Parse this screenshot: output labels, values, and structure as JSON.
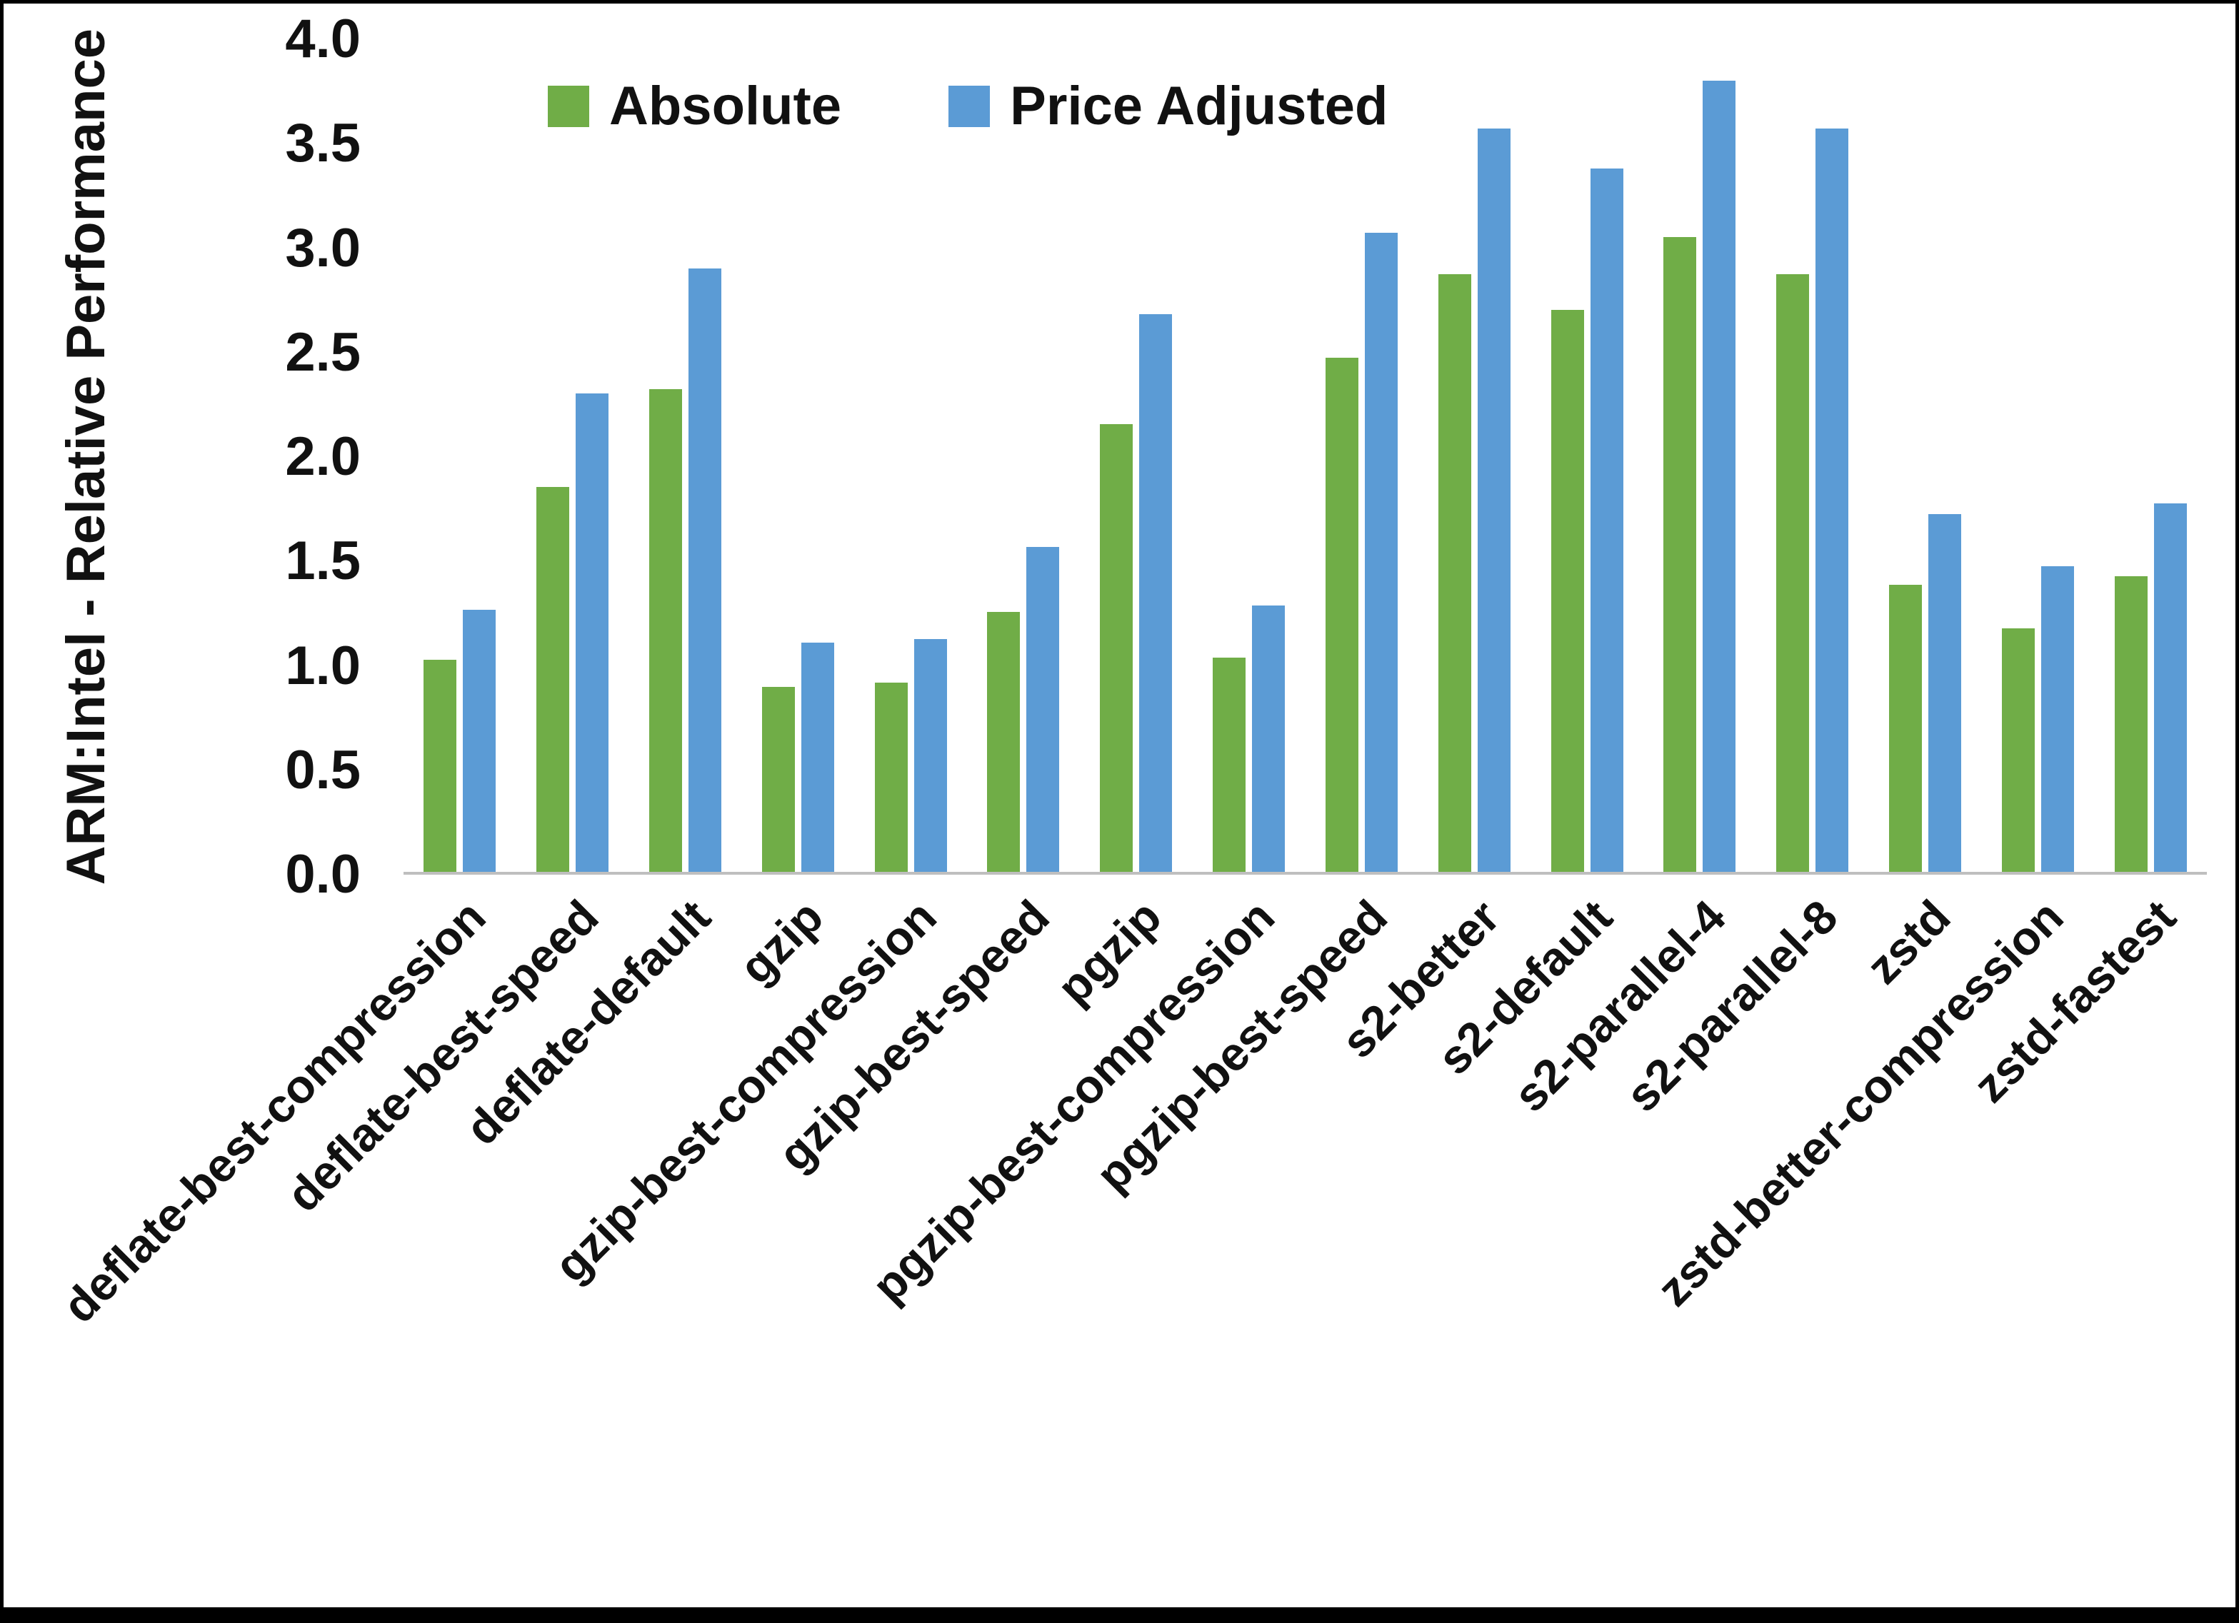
{
  "page": {
    "background": "#ffffff",
    "frame_border_color": "#000000",
    "axis_line_color": "#bfbfbf"
  },
  "chart_data": {
    "type": "bar",
    "title": "",
    "xlabel": "",
    "ylabel": "ARM:Intel - Relative Performance",
    "ylim": [
      0,
      4
    ],
    "ytick_step": 0.5,
    "yticks": [
      "0.0",
      "0.5",
      "1.0",
      "1.5",
      "2.0",
      "2.5",
      "3.0",
      "3.5",
      "4.0"
    ],
    "grid": false,
    "legend_position": "top",
    "categories": [
      "deflate-best-compression",
      "deflate-best-speed",
      "deflate-default",
      "gzip",
      "gzip-best-compression",
      "gzip-best-speed",
      "pgzip",
      "pgzip-best-compression",
      "pgzip-best-speed",
      "s2-better",
      "s2-default",
      "s2-parallel-4",
      "s2-parallel-8",
      "zstd",
      "zstd-better-compression",
      "zstd-fastest"
    ],
    "series": [
      {
        "name": "Absolute",
        "color": "#70AD47",
        "values": [
          1.02,
          1.85,
          2.32,
          0.89,
          0.91,
          1.25,
          2.15,
          1.03,
          2.47,
          2.87,
          2.7,
          3.05,
          2.87,
          1.38,
          1.17,
          1.42
        ]
      },
      {
        "name": "Price Adjusted",
        "color": "#5B9BD5",
        "values": [
          1.26,
          2.3,
          2.9,
          1.1,
          1.12,
          1.56,
          2.68,
          1.28,
          3.07,
          3.57,
          3.38,
          3.8,
          3.57,
          1.72,
          1.47,
          1.77
        ]
      }
    ]
  }
}
